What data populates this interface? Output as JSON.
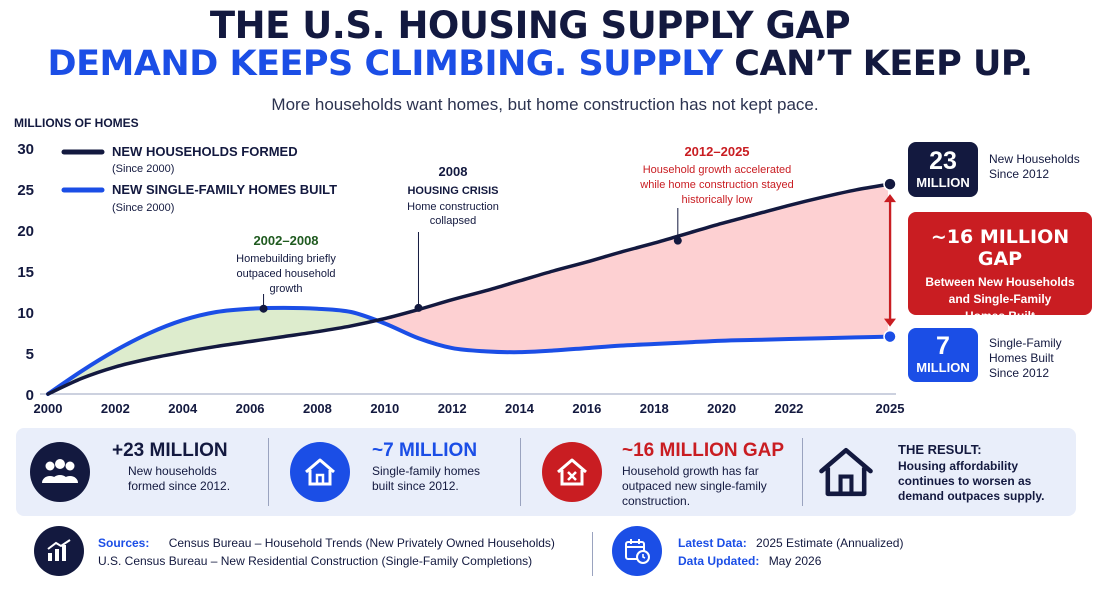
{
  "header": {
    "title_line1": "THE U.S. HOUSING SUPPLY GAP",
    "title_line2_blue": "DEMAND KEEPS CLIMBING. SUPPLY",
    "title_line2_navy": "CAN’T KEEP UP.",
    "subtitle": "More households want homes, but home construction has not kept pace."
  },
  "colors": {
    "navy": "#13193f",
    "blue": "#1b4ee6",
    "red": "#c91d22",
    "green_text": "#1f5a1f",
    "gap_fill": "#fdd0d2",
    "early_fill": "#ddeccd",
    "panel_bg": "#e9eefa"
  },
  "chart_data": {
    "type": "line",
    "ylabel": "MILLIONS OF HOMES",
    "xlim": [
      2000,
      2025
    ],
    "ylim": [
      0,
      30
    ],
    "x_ticks": [
      "2000",
      "2002",
      "2004",
      "2006",
      "2008",
      "2010",
      "2012",
      "2014",
      "2016",
      "2018",
      "2020",
      "2022",
      "2025"
    ],
    "x_tick_values": [
      2000,
      2002,
      2004,
      2006,
      2008,
      2010,
      2012,
      2014,
      2016,
      2018,
      2020,
      2022,
      2025
    ],
    "y_ticks": [
      "0",
      "5",
      "10",
      "15",
      "20",
      "25",
      "30"
    ],
    "y_tick_values": [
      0,
      5,
      10,
      15,
      20,
      25,
      30
    ],
    "grid": false,
    "legend_position": "top-left",
    "series": [
      {
        "name": "NEW HOUSEHOLDS FORMED",
        "note": "(Since 2000)",
        "color": "#13193f",
        "x": [
          2000,
          2001,
          2002,
          2003,
          2004,
          2005,
          2006,
          2007,
          2008,
          2009,
          2010,
          2011,
          2012,
          2013,
          2014,
          2015,
          2016,
          2017,
          2018,
          2019,
          2020,
          2021,
          2022,
          2023,
          2024,
          2025
        ],
        "y": [
          0,
          1.9,
          3.3,
          4.3,
          5.1,
          5.8,
          6.4,
          7.0,
          7.6,
          8.3,
          9.2,
          10.3,
          11.5,
          12.6,
          13.8,
          15.0,
          16.1,
          17.3,
          18.4,
          19.6,
          20.8,
          21.9,
          23.0,
          24.0,
          24.9,
          25.6
        ]
      },
      {
        "name": "NEW SINGLE-FAMILY HOMES BUILT",
        "note": "(Since 2000)",
        "color": "#1b4ee6",
        "x": [
          2000,
          2001,
          2002,
          2003,
          2004,
          2005,
          2006,
          2007,
          2008,
          2009,
          2010,
          2011,
          2012,
          2013,
          2014,
          2015,
          2016,
          2017,
          2018,
          2019,
          2020,
          2021,
          2022,
          2023,
          2024,
          2025
        ],
        "y": [
          0,
          2.8,
          5.3,
          7.4,
          9.0,
          10.0,
          10.4,
          10.5,
          10.4,
          10.0,
          8.6,
          6.8,
          5.6,
          5.2,
          5.1,
          5.3,
          5.6,
          5.9,
          6.1,
          6.3,
          6.5,
          6.6,
          6.7,
          6.8,
          6.9,
          7.0
        ]
      }
    ],
    "annotations": [
      {
        "title": "2002–2008",
        "text": "Homebuilding briefly outpaced household growth",
        "x": 2006.4,
        "y": 10.4,
        "color": "#1f5a1f"
      },
      {
        "title": "2008",
        "subtitle": "HOUSING CRISIS",
        "text": "Home construction collapsed",
        "x": 2011.0,
        "y": 10.5,
        "color": "#13193f"
      },
      {
        "title": "2012–2025",
        "text": "Household growth accelerated while home construction stayed historically low",
        "x": 2018.7,
        "y": 18.7,
        "color": "#c91d22"
      }
    ]
  },
  "annotation_lines": {
    "early": [
      "Homebuilding briefly",
      "outpaced household",
      "growth"
    ],
    "crisis": [
      "Home construction",
      "collapsed"
    ],
    "late": [
      "Household growth accelerated",
      "while home construction stayed",
      "historically low"
    ]
  },
  "callouts": {
    "households": {
      "value": "23",
      "unit": "MILLION",
      "label_line1": "New Households",
      "label_line2": "Since 2012"
    },
    "gap": {
      "value": "~16 MILLION GAP",
      "line1": "Between New Households",
      "line2": "and Single-Family",
      "line3": "Homes Built"
    },
    "homes": {
      "value": "7",
      "unit": "MILLION",
      "label_line1": "Single-Family",
      "label_line2": "Homes Built",
      "label_line3": "Since 2012"
    }
  },
  "stats": [
    {
      "icon": "people-icon",
      "head": "+23 MILLION",
      "line1": "New households",
      "line2": "formed since 2012.",
      "head_color": "#13193f"
    },
    {
      "icon": "house-icon",
      "head": "~7 MILLION",
      "line1": "Single-family homes",
      "line2": "built since 2012.",
      "head_color": "#1b4ee6"
    },
    {
      "icon": "house-x-icon",
      "head": "~16 MILLION GAP",
      "line1": "Household growth has far",
      "line2": "outpaced new single-family",
      "line3": "construction.",
      "head_color": "#c91d22"
    },
    {
      "icon": "house-outline-icon",
      "head": "THE RESULT:",
      "line1": "Housing affordability",
      "line2": "continues to worsen as",
      "line3": "demand outpaces supply.",
      "head_color": "#13193f"
    }
  ],
  "footer": {
    "sources_label": "Sources:",
    "source1": "Census Bureau – Household Trends (New Privately Owned Households)",
    "source2": "U.S. Census Bureau – New Residential Construction (Single-Family Completions)",
    "latest_label": "Latest Data:",
    "latest_value": "2025 Estimate (Annualized)",
    "updated_label": "Data Updated:",
    "updated_value": "May 2026"
  }
}
